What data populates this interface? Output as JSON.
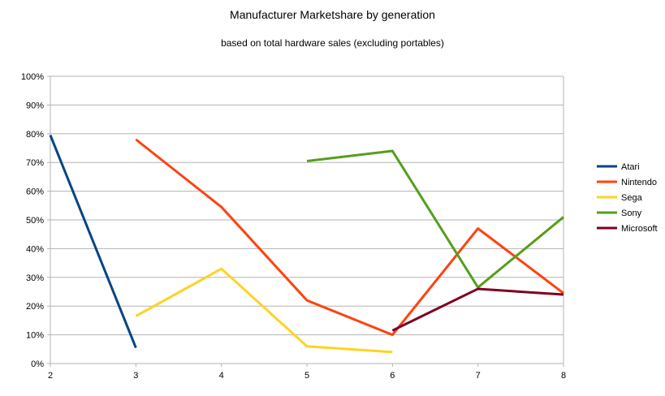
{
  "chart_data": {
    "type": "line",
    "title": "Manufacturer Marketshare by generation",
    "subtitle": "based on total hardware sales (excluding portables)",
    "xlabel": "",
    "ylabel": "",
    "x": [
      2,
      3,
      4,
      5,
      6,
      7,
      8
    ],
    "xlim": [
      2,
      8
    ],
    "ylim": [
      0,
      100
    ],
    "yticks": [
      "0%",
      "10%",
      "20%",
      "30%",
      "40%",
      "50%",
      "60%",
      "70%",
      "80%",
      "90%",
      "100%"
    ],
    "xticks": [
      "2",
      "3",
      "4",
      "5",
      "6",
      "7",
      "8"
    ],
    "grid": true,
    "legend_position": "right",
    "series": [
      {
        "name": "Atari",
        "color": "#004586",
        "values": [
          79.5,
          5.5,
          null,
          null,
          null,
          null,
          null
        ]
      },
      {
        "name": "Nintendo",
        "color": "#ff420e",
        "values": [
          null,
          78,
          54.5,
          22,
          10,
          47,
          24.5
        ]
      },
      {
        "name": "Sega",
        "color": "#ffd320",
        "values": [
          null,
          16.5,
          33,
          6,
          4,
          null,
          null
        ]
      },
      {
        "name": "Sony",
        "color": "#579d1c",
        "values": [
          null,
          null,
          null,
          70.5,
          74,
          26.5,
          51
        ]
      },
      {
        "name": "Microsoft",
        "color": "#7e0021",
        "values": [
          null,
          null,
          null,
          null,
          11.5,
          26,
          24
        ]
      }
    ]
  }
}
